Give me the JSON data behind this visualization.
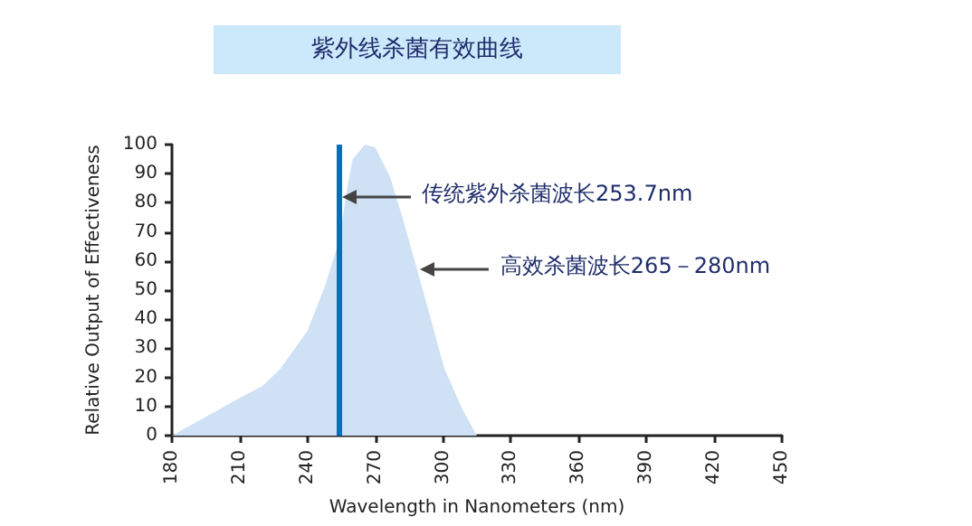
{
  "chart_data": {
    "type": "area",
    "title": "紫外线杀菌有效曲线",
    "xlabel": "Wavelength in Nanometers (nm)",
    "ylabel": "Relative Output of Effectiveness",
    "x": [
      180,
      210,
      220,
      228,
      240,
      248,
      254,
      258,
      260,
      265.5,
      270,
      276.5,
      282,
      290,
      300.6,
      308.6,
      315
    ],
    "series": [
      {
        "color": "#cfe1f4",
        "values": [
          0,
          13,
          17,
          23,
          36,
          52,
          67,
          87,
          95,
          100,
          99,
          89,
          75,
          53,
          23,
          9,
          0
        ]
      }
    ],
    "xlim": [
      180,
      450
    ],
    "xticks": [
      180,
      210,
      240,
      270,
      300,
      330,
      360,
      390,
      420,
      450
    ],
    "ylim": [
      0,
      100
    ],
    "yticks": [
      0,
      10,
      20,
      30,
      40,
      50,
      60,
      70,
      80,
      90,
      100
    ],
    "ref_lines": [
      {
        "axis": "x",
        "value": 253.7,
        "color": "#0070c0"
      }
    ],
    "annotations": [
      {
        "text": "传统紫外杀菌波长253.7nm",
        "x": 253.7,
        "y": 82
      },
      {
        "text": "高效杀菌波长265－280nm",
        "x": 288.5,
        "y": 57
      }
    ],
    "grid": false,
    "marker": "none"
  }
}
